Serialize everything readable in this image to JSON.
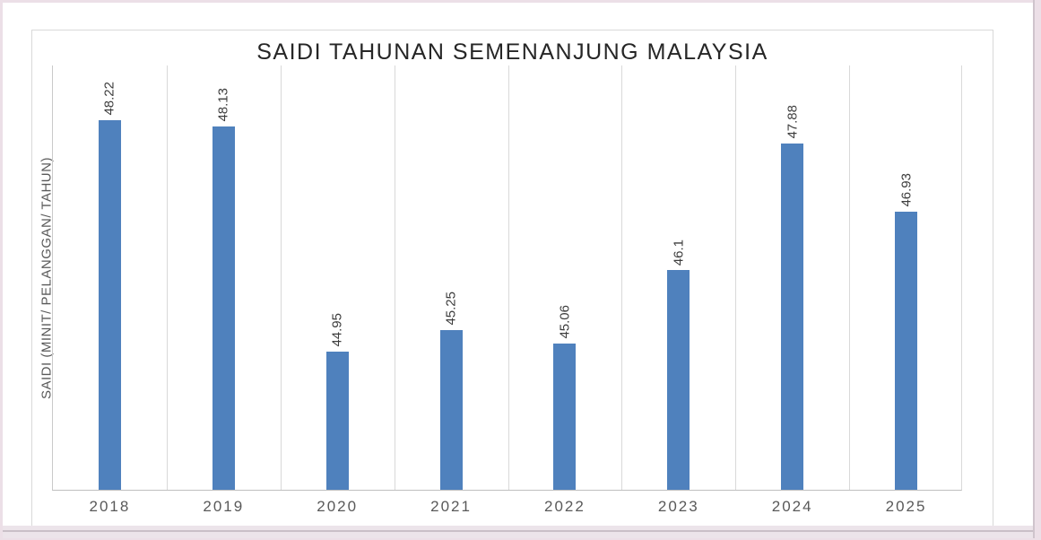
{
  "window": {
    "border_color": "#ecdfe7",
    "border_line_color": "#cfc4cc",
    "status_strip_color": "#ece4ea",
    "status_strip_line_color": "#c9bfc7",
    "sheet_background": "#ffffff"
  },
  "chart_data": {
    "type": "bar",
    "title": "SAIDI TAHUNAN SEMENANJUNG MALAYSIA",
    "ylabel": "SAIDI (MINIT/ PELANGGAN/ TAHUN)",
    "xlabel": "",
    "categories": [
      "2018",
      "2019",
      "2020",
      "2021",
      "2022",
      "2023",
      "2024",
      "2025"
    ],
    "values": [
      48.22,
      48.13,
      44.95,
      45.25,
      45.06,
      46.1,
      47.88,
      46.93
    ],
    "data_labels": [
      "48.22",
      "48.13",
      "44.95",
      "45.25",
      "45.06",
      "46.1",
      "47.88",
      "46.93"
    ],
    "data_label_rotation_deg": 90,
    "ylim": [
      43,
      49
    ],
    "y_tick_labels_visible": false,
    "legend": "none",
    "gridlines": "vertical-category",
    "bar_color": "#4F81BD",
    "title_color": "#262626",
    "axis_title_color": "#595959",
    "tick_label_color": "#595959",
    "data_label_color": "#3d3d3d",
    "gridline_color": "#d9d9d9",
    "axis_line_color": "#bfbfbf",
    "chart_border_color": "#d9d9d9"
  }
}
